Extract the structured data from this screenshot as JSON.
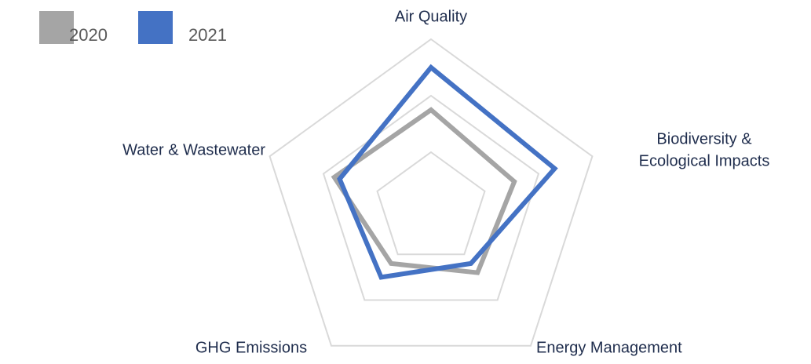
{
  "chart_data": {
    "type": "radar",
    "categories": [
      "Air Quality",
      [
        "Biodiversity &",
        "Ecological Impacts"
      ],
      "Energy Management",
      "GHG Emissions",
      "Water & Wastewater"
    ],
    "series": [
      {
        "name": "2020",
        "color": "#a5a5a5",
        "values": [
          1.75,
          1.55,
          1.4,
          1.2,
          1.8
        ]
      },
      {
        "name": "2021",
        "color": "#4472c4",
        "values": [
          2.5,
          2.3,
          1.2,
          1.5,
          1.7
        ]
      }
    ],
    "rlim": [
      0,
      3
    ],
    "rticks": [
      1,
      2,
      3
    ],
    "grid": true,
    "legend": "top-left"
  }
}
